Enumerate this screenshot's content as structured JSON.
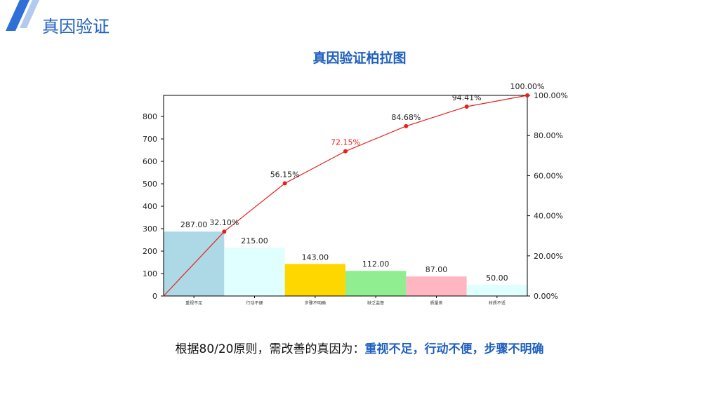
{
  "header": {
    "title": "真因验证"
  },
  "chart_data": {
    "type": "bar",
    "title": "真因验证柏拉图",
    "categories": [
      "重视不足",
      "行动不便",
      "步骤不明确",
      "缺乏监督",
      "质量差",
      "材质不适"
    ],
    "values": [
      287,
      215,
      143,
      112,
      87,
      50
    ],
    "value_labels": [
      "287.00",
      "215.00",
      "143.00",
      "112.00",
      "87.00",
      "50.00"
    ],
    "bar_colors": [
      "#add8e6",
      "#e0ffff",
      "#ffd700",
      "#90ee90",
      "#ffb6c1",
      "#e0ffff"
    ],
    "cumulative": {
      "values": [
        0,
        32.1,
        56.15,
        72.15,
        84.68,
        94.41,
        100.0
      ],
      "labels": [
        "",
        "32.10%",
        "56.15%",
        "72.15%",
        "84.68%",
        "94.41%",
        "100.00%"
      ],
      "highlight_label_index": 3,
      "line_color": "#e8201c"
    },
    "left_axis": {
      "ylim": [
        0,
        894
      ],
      "ticks": [
        0,
        100,
        200,
        300,
        400,
        500,
        600,
        700,
        800
      ],
      "tick_labels": [
        "0",
        "100",
        "200",
        "300",
        "400",
        "500",
        "600",
        "700",
        "800"
      ]
    },
    "right_axis": {
      "ylim": [
        0,
        100
      ],
      "ticks": [
        0,
        20,
        40,
        60,
        80,
        100
      ],
      "tick_labels": [
        "0.00%",
        "20.00%",
        "40.00%",
        "60.00%",
        "80.00%",
        "100.00%"
      ]
    },
    "grid": false
  },
  "conclusion": {
    "prefix": "根据80/20原则，需改善的真因为：",
    "highlight": "重视不足，行动不便，步骤不明确"
  },
  "colors": {
    "accent": "#1f5fbf"
  }
}
